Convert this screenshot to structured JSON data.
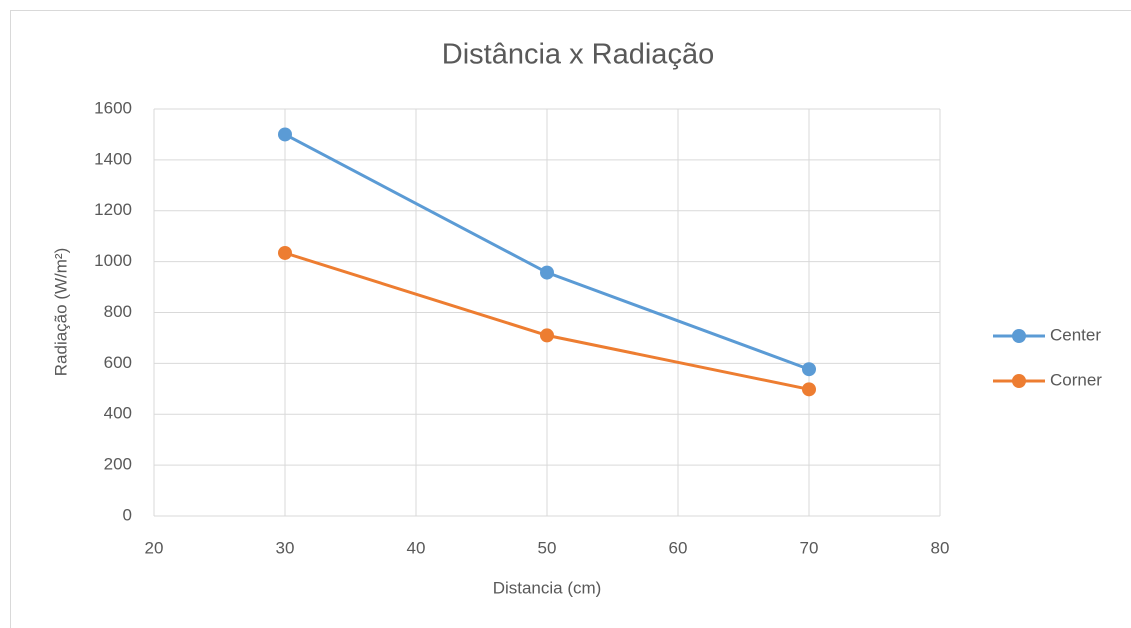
{
  "chart_data": {
    "type": "line",
    "title": "Distância x Radiação",
    "x_label": "Distancia (cm)",
    "y_label": "Radiação (W/m²)",
    "x": [
      30,
      50,
      70
    ],
    "series": [
      {
        "name": "Center",
        "color": "#5b9bd5",
        "values": [
          1500,
          957,
          577
        ]
      },
      {
        "name": "Corner",
        "color": "#ed7d31",
        "values": [
          1034,
          710,
          498
        ]
      }
    ],
    "xlim": [
      20,
      80
    ],
    "xticks": [
      20,
      30,
      40,
      50,
      60,
      70,
      80
    ],
    "ylim": [
      0,
      1600
    ],
    "yticks": [
      0,
      200,
      400,
      600,
      800,
      1000,
      1200,
      1400,
      1600
    ],
    "grid": true,
    "legend": "right"
  }
}
